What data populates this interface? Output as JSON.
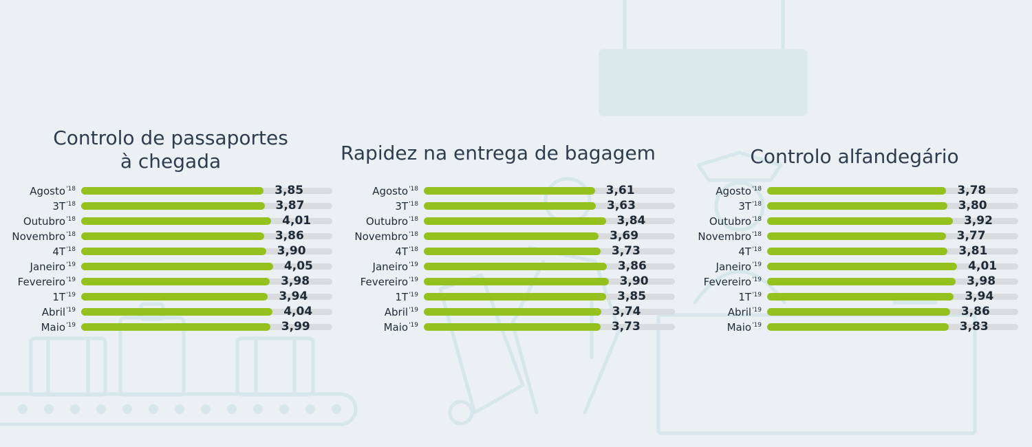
{
  "colors": {
    "background": "#eaf0f4",
    "bar": "#95c11f",
    "track": "#d9dcdf",
    "text": "#1e2a36",
    "title": "#2e3c4c",
    "illustration": "#d7e6ea"
  },
  "illustrations": [
    "conveyor-belt-icon",
    "suitcase-icon",
    "traveler-icon",
    "customs-officer-icon",
    "hanging-sign-icon"
  ],
  "chart_data": [
    {
      "type": "bar",
      "orientation": "horizontal",
      "title": "Controlo de passaportes à chegada",
      "title_lines": [
        "Controlo de passaportes",
        "à chegada"
      ],
      "categories": [
        {
          "label": "Agosto",
          "sup": "'18"
        },
        {
          "label": "3T",
          "sup": "'18"
        },
        {
          "label": "Outubro",
          "sup": "'18"
        },
        {
          "label": "Novembro",
          "sup": "'18"
        },
        {
          "label": "4T",
          "sup": "'18"
        },
        {
          "label": "Janeiro",
          "sup": "'19"
        },
        {
          "label": "Fevereiro",
          "sup": "'19"
        },
        {
          "label": "1T",
          "sup": "'19"
        },
        {
          "label": "Abril",
          "sup": "'19"
        },
        {
          "label": "Maio",
          "sup": "'19"
        }
      ],
      "values": [
        3.85,
        3.87,
        4.01,
        3.86,
        3.9,
        4.05,
        3.98,
        3.94,
        4.04,
        3.99
      ],
      "value_labels": [
        "3,85",
        "3,87",
        "4,01",
        "3,86",
        "3,90",
        "4,05",
        "3,98",
        "3,94",
        "4,04",
        "3,99"
      ],
      "xlim": [
        0,
        5.3
      ]
    },
    {
      "type": "bar",
      "orientation": "horizontal",
      "title": "Rapidez na entrega de bagagem",
      "title_lines": [
        "Rapidez na entrega de bagagem"
      ],
      "categories": [
        {
          "label": "Agosto",
          "sup": "'18"
        },
        {
          "label": "3T",
          "sup": "'18"
        },
        {
          "label": "Outubro",
          "sup": "'18"
        },
        {
          "label": "Novembro",
          "sup": "'18"
        },
        {
          "label": "4T",
          "sup": "'18"
        },
        {
          "label": "Janeiro",
          "sup": "'19"
        },
        {
          "label": "Fevereiro",
          "sup": "'19"
        },
        {
          "label": "1T",
          "sup": "'19"
        },
        {
          "label": "Abril",
          "sup": "'19"
        },
        {
          "label": "Maio",
          "sup": "'19"
        }
      ],
      "values": [
        3.61,
        3.63,
        3.84,
        3.69,
        3.73,
        3.86,
        3.9,
        3.85,
        3.74,
        3.73
      ],
      "value_labels": [
        "3,61",
        "3,63",
        "3,84",
        "3,69",
        "3,73",
        "3,86",
        "3,90",
        "3,85",
        "3,74",
        "3,73"
      ],
      "xlim": [
        0,
        5.3
      ]
    },
    {
      "type": "bar",
      "orientation": "horizontal",
      "title": "Controlo alfandegário",
      "title_lines": [
        "Controlo alfandegário"
      ],
      "categories": [
        {
          "label": "Agosto",
          "sup": "'18"
        },
        {
          "label": "3T",
          "sup": "'18"
        },
        {
          "label": "Outubro",
          "sup": "'18"
        },
        {
          "label": "Novembro",
          "sup": "'18"
        },
        {
          "label": "4T",
          "sup": "'18"
        },
        {
          "label": "Janeiro",
          "sup": "'19"
        },
        {
          "label": "Fevereiro",
          "sup": "'19"
        },
        {
          "label": "1T",
          "sup": "'19"
        },
        {
          "label": "Abril",
          "sup": "'19"
        },
        {
          "label": "Maio",
          "sup": "'19"
        }
      ],
      "values": [
        3.78,
        3.8,
        3.92,
        3.77,
        3.81,
        4.01,
        3.98,
        3.94,
        3.86,
        3.83
      ],
      "value_labels": [
        "3,78",
        "3,80",
        "3,92",
        "3,77",
        "3,81",
        "4,01",
        "3,98",
        "3,94",
        "3,86",
        "3,83"
      ],
      "xlim": [
        0,
        5.3
      ]
    }
  ]
}
